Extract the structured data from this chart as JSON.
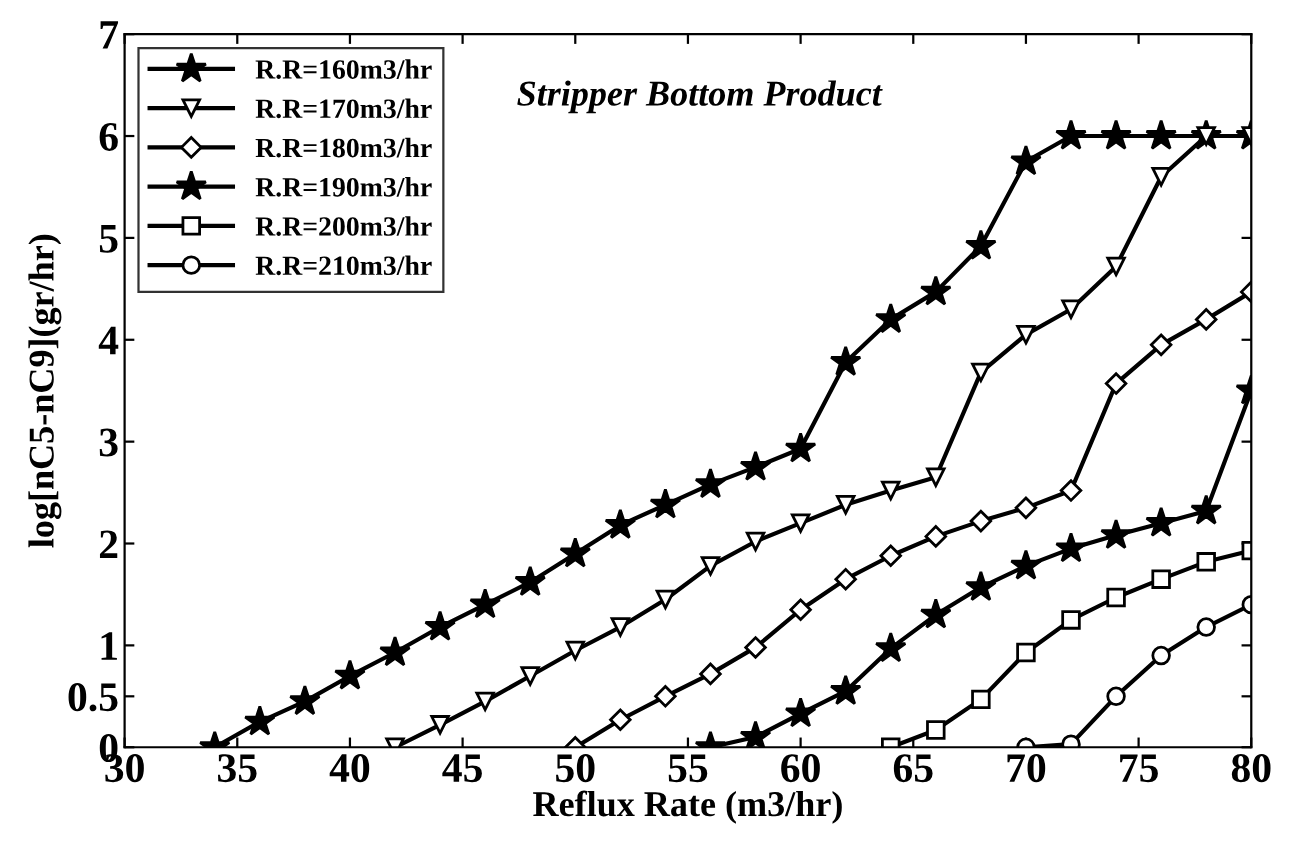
{
  "chart_data": {
    "type": "line",
    "xlabel": "Reflux Rate (m3/hr)",
    "ylabel": "log[nC5-nC9](gr/hr)",
    "annotations": [
      "Stripper Bottom Product"
    ],
    "xlim": [
      30,
      80
    ],
    "xticks": [
      30,
      35,
      40,
      45,
      50,
      55,
      60,
      65,
      70,
      75,
      80
    ],
    "ylim": [
      0,
      7
    ],
    "yticks": [
      0,
      0.5,
      1,
      2,
      3,
      4,
      5,
      6,
      7
    ],
    "grid": false,
    "legend": "top left",
    "line_style": "solid",
    "series": [
      {
        "name": "R.R=160m3/hr",
        "color": "#000000",
        "marker": "star",
        "x": [
          34,
          36,
          38,
          40,
          42,
          44,
          46,
          48,
          50,
          52,
          54,
          56,
          58,
          60,
          62,
          64,
          66,
          68,
          70,
          72,
          74,
          76,
          78,
          80
        ],
        "values": [
          0,
          0.25,
          0.45,
          0.7,
          0.93,
          1.18,
          1.4,
          1.62,
          1.9,
          2.18,
          2.38,
          2.58,
          2.75,
          2.93,
          3.78,
          4.2,
          4.47,
          4.92,
          5.75,
          6,
          6,
          6,
          6,
          6
        ]
      },
      {
        "name": "R.R=170m3/hr",
        "color": "#000000",
        "marker": "triangle",
        "x": [
          42,
          44,
          46,
          48,
          50,
          52,
          54,
          56,
          58,
          60,
          62,
          64,
          66,
          68,
          70,
          72,
          74,
          76,
          78,
          80
        ],
        "values": [
          0,
          0.22,
          0.45,
          0.7,
          0.95,
          1.18,
          1.45,
          1.78,
          2.02,
          2.2,
          2.38,
          2.52,
          2.65,
          3.68,
          4.05,
          4.3,
          4.72,
          5.6,
          6,
          6
        ]
      },
      {
        "name": "R.R=180m3/hr",
        "color": "#000000",
        "marker": "diamond",
        "x": [
          50,
          52,
          54,
          56,
          58,
          60,
          62,
          64,
          66,
          68,
          70,
          72,
          74,
          76,
          78,
          80
        ],
        "values": [
          0,
          0.27,
          0.5,
          0.72,
          0.98,
          1.35,
          1.65,
          1.88,
          2.07,
          2.22,
          2.35,
          2.52,
          3.57,
          3.95,
          4.2,
          4.47
        ]
      },
      {
        "name": "R.R=190m3/hr",
        "color": "#000000",
        "marker": "star",
        "x": [
          56,
          58,
          60,
          62,
          64,
          66,
          68,
          70,
          72,
          74,
          76,
          78,
          80
        ],
        "values": [
          0,
          0.1,
          0.33,
          0.55,
          0.97,
          1.3,
          1.57,
          1.78,
          1.95,
          2.08,
          2.2,
          2.32,
          3.5
        ]
      },
      {
        "name": "R.R=200m3/hr",
        "color": "#000000",
        "marker": "square",
        "x": [
          64,
          66,
          68,
          70,
          72,
          74,
          76,
          78,
          80
        ],
        "values": [
          0,
          0.17,
          0.47,
          0.93,
          1.25,
          1.47,
          1.65,
          1.82,
          1.93
        ]
      },
      {
        "name": "R.R=210m3/hr",
        "color": "#000000",
        "marker": "circle",
        "x": [
          70,
          72,
          74,
          76,
          78,
          80
        ],
        "values": [
          0,
          0.03,
          0.5,
          0.9,
          1.18,
          1.4
        ]
      }
    ]
  }
}
